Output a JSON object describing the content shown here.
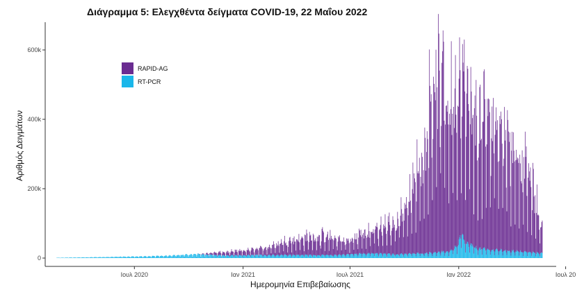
{
  "chart_data": {
    "type": "bar",
    "stacked": true,
    "title": "Διάγραμμα 5: Ελεγχθέντα δείγματα COVID-19, 22 Μαΐου 2022",
    "xlabel": "Ημερομηνία Επιβεβαίωσης",
    "ylabel": "Αριθμός Δειγμάτων",
    "ylim": [
      0,
      680000
    ],
    "y_ticks": [
      0,
      200000,
      400000,
      600000
    ],
    "y_tick_labels": [
      "0",
      "200k",
      "400k",
      "600k"
    ],
    "x_range": [
      "2020-02-01",
      "2022-06-15"
    ],
    "x_ticks": [
      "2020-07-01",
      "2021-01-01",
      "2021-07-01",
      "2022-01-01",
      "2022-07-01"
    ],
    "x_tick_labels": [
      "Ιουλ 2020",
      "Ιαν 2021",
      "Ιουλ 2021",
      "Ιαν 2022",
      "Ιουλ 20"
    ],
    "legend_position": "top-left",
    "grid": false,
    "bar_width_days": 1,
    "weekly_pattern": [
      0.85,
      1.0,
      1.0,
      1.0,
      0.95,
      0.8,
      0.35
    ],
    "series": [
      {
        "name": "RT-PCR",
        "color": "#1ab7ea",
        "profile_dates": [
          "2020-02-20",
          "2020-05-01",
          "2020-08-01",
          "2020-10-15",
          "2020-12-01",
          "2021-03-15",
          "2021-06-01",
          "2021-08-01",
          "2021-09-15",
          "2021-11-01",
          "2021-12-15",
          "2021-12-31",
          "2022-01-05",
          "2022-01-10",
          "2022-02-01",
          "2022-03-01",
          "2022-04-01",
          "2022-05-22"
        ],
        "profile_values": [
          1000,
          3000,
          6000,
          12000,
          8000,
          10000,
          9000,
          15000,
          12000,
          15000,
          20000,
          40000,
          80000,
          50000,
          30000,
          25000,
          22000,
          15000
        ]
      },
      {
        "name": "RAPID-AG",
        "color": "#6a2c91",
        "profile_dates": [
          "2020-02-20",
          "2020-10-15",
          "2020-11-15",
          "2021-01-01",
          "2021-02-01",
          "2021-03-15",
          "2021-05-01",
          "2021-06-01",
          "2021-07-01",
          "2021-07-15",
          "2021-09-01",
          "2021-09-15",
          "2021-10-15",
          "2021-11-05",
          "2021-11-20",
          "2021-12-15",
          "2022-01-05",
          "2022-02-01",
          "2022-03-01",
          "2022-04-01",
          "2022-05-01",
          "2022-05-22"
        ],
        "profile_values": [
          0,
          0,
          8000,
          15000,
          20000,
          45000,
          60000,
          55000,
          40000,
          60000,
          90000,
          100000,
          200000,
          350000,
          560000,
          480000,
          500000,
          380000,
          420000,
          340000,
          230000,
          80000
        ]
      }
    ]
  }
}
